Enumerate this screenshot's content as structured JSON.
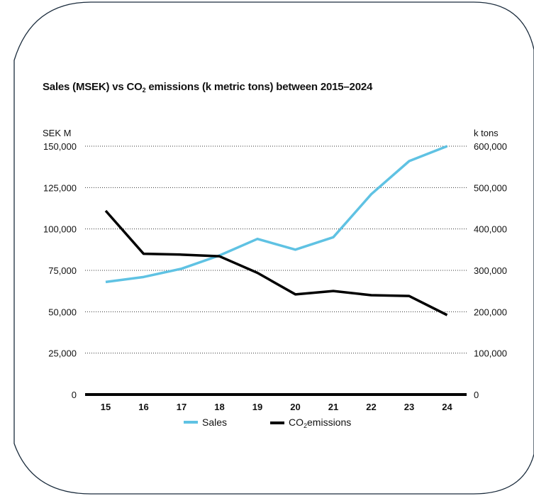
{
  "title": {
    "prefix": "Sales (MSEK) vs CO",
    "sub": "2",
    "suffix": " emissions (k metric tons) between 2015–2024"
  },
  "left_unit": "SEK M",
  "right_unit": "k tons",
  "legend": {
    "sales": "Sales",
    "co2_prefix": "CO",
    "co2_sub": "2",
    "co2_suffix": "emissions"
  },
  "colors": {
    "sales": "#5fc2e3",
    "co2": "#000000",
    "frame": "#1a2b3c",
    "grid": "#333333"
  },
  "chart_data": {
    "type": "line",
    "categories": [
      "15",
      "16",
      "17",
      "18",
      "19",
      "20",
      "21",
      "22",
      "23",
      "24"
    ],
    "left_axis": {
      "ylim": [
        0,
        150000
      ],
      "ticks": [
        "0",
        "25,000",
        "50,000",
        "75,000",
        "100,000",
        "125,000",
        "150,000"
      ]
    },
    "right_axis": {
      "ylim": [
        0,
        600000
      ],
      "ticks": [
        "0",
        "100,000",
        "200,000",
        "300,000",
        "400,000",
        "500,000",
        "600,000"
      ]
    },
    "series": [
      {
        "name": "Sales",
        "axis": "left",
        "values": [
          68000,
          71000,
          76000,
          84000,
          94000,
          87500,
          95000,
          121000,
          141000,
          150000
        ]
      },
      {
        "name": "CO2emissions",
        "axis": "right",
        "values": [
          444000,
          340000,
          338000,
          334000,
          294000,
          242000,
          250000,
          240000,
          238000,
          192000
        ]
      }
    ],
    "grid": true
  }
}
